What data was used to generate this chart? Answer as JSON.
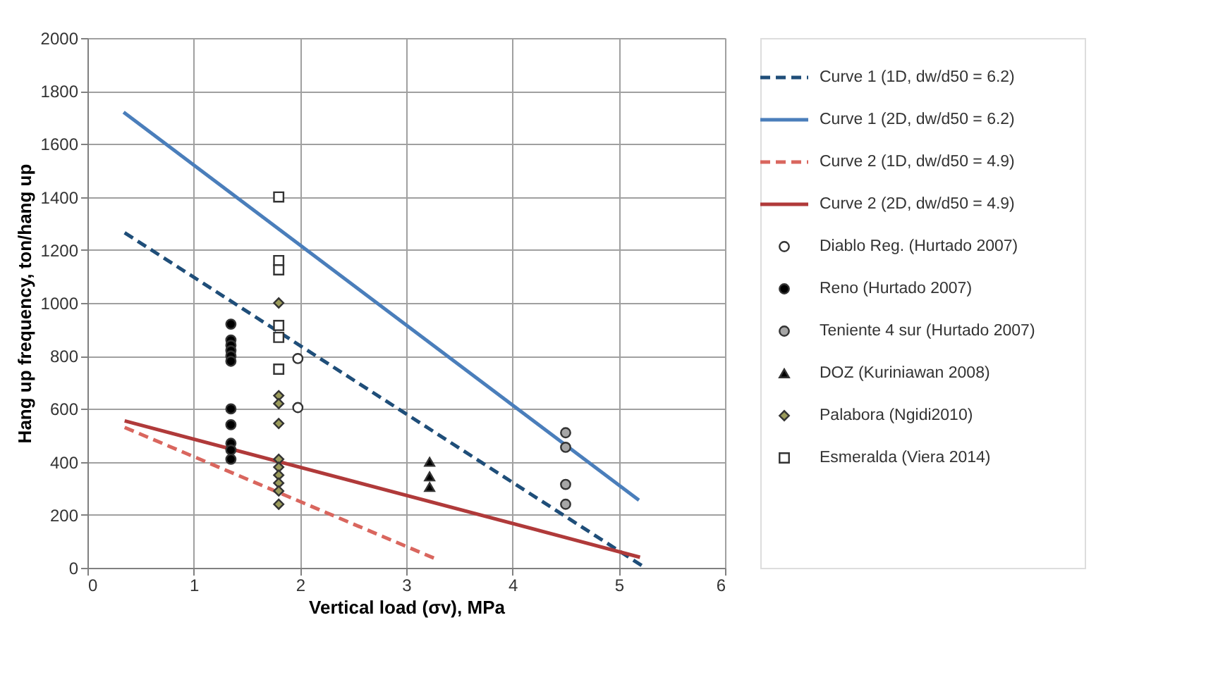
{
  "chart_data": {
    "type": "scatter",
    "xlabel": "Vertical load (σv), MPa",
    "ylabel": "Hang up frequency, ton/hang up",
    "xlim": [
      0,
      6
    ],
    "xticks": [
      0,
      1,
      2,
      3,
      4,
      5,
      6
    ],
    "ylim": [
      0,
      2000
    ],
    "yticks": [
      0,
      200,
      400,
      600,
      800,
      1000,
      1200,
      1400,
      1600,
      1800,
      2000
    ],
    "grid": true,
    "legend": "right",
    "series": [
      {
        "name": "Curve 1 (1D, dw/d50 = 6.2)",
        "type": "line",
        "color": "#1f4e79",
        "line_style": "dashed",
        "marker": "none",
        "x": [
          0.35,
          5.25
        ],
        "values": [
          1265,
          0
        ]
      },
      {
        "name": "Curve 1 (2D, dw/d50 = 6.2)",
        "type": "line",
        "color": "#4a7ebb",
        "line_style": "solid",
        "marker": "none",
        "x": [
          0.34,
          5.19
        ],
        "values": [
          1720,
          255
        ]
      },
      {
        "name": "Curve 2 (1D, dw/d50 = 4.9)",
        "type": "line",
        "color": "#d9665e",
        "line_style": "dashed",
        "marker": "none",
        "x": [
          0.35,
          3.3
        ],
        "values": [
          530,
          30
        ]
      },
      {
        "name": "Curve 2 (2D, dw/d50 = 4.9)",
        "type": "line",
        "color": "#b03a3a",
        "line_style": "solid",
        "marker": "none",
        "x": [
          0.35,
          5.2
        ],
        "values": [
          555,
          40
        ]
      },
      {
        "name": "Diablo Reg. (Hurtado 2007)",
        "color": "#ffffff",
        "marker": "circle",
        "x": [
          1.98,
          1.98
        ],
        "values": [
          790,
          605
        ]
      },
      {
        "name": "Reno (Hurtado 2007)",
        "color": "#000000",
        "marker": "circle",
        "x": [
          1.35,
          1.35,
          1.35,
          1.35,
          1.35,
          1.35,
          1.35,
          1.35,
          1.35,
          1.35,
          1.35
        ],
        "values": [
          920,
          860,
          840,
          820,
          800,
          780,
          600,
          540,
          470,
          445,
          410
        ]
      },
      {
        "name": "Teniente 4 sur (Hurtado 2007)",
        "color": "#a6a6a6",
        "marker": "circle",
        "x": [
          4.5,
          4.5,
          4.5,
          4.5
        ],
        "values": [
          510,
          455,
          315,
          240
        ]
      },
      {
        "name": "DOZ (Kuriniawan 2008)",
        "color": "#000000",
        "marker": "triangle",
        "x": [
          3.22,
          3.22,
          3.22
        ],
        "values": [
          400,
          345,
          305
        ]
      },
      {
        "name": "Palabora (Ngidi2010)",
        "color": "#9b9b5a",
        "marker": "diamond",
        "x": [
          1.8,
          1.8,
          1.8,
          1.8,
          1.8,
          1.8,
          1.8,
          1.8,
          1.8,
          1.8
        ],
        "values": [
          1000,
          650,
          620,
          545,
          410,
          380,
          350,
          320,
          290,
          240
        ]
      },
      {
        "name": "Esmeralda (Viera 2014)",
        "color": "#ffffff",
        "marker": "square",
        "x": [
          1.8,
          1.8,
          1.8,
          1.8,
          1.8,
          1.8
        ],
        "values": [
          1400,
          1160,
          1125,
          915,
          870,
          750
        ]
      }
    ]
  }
}
